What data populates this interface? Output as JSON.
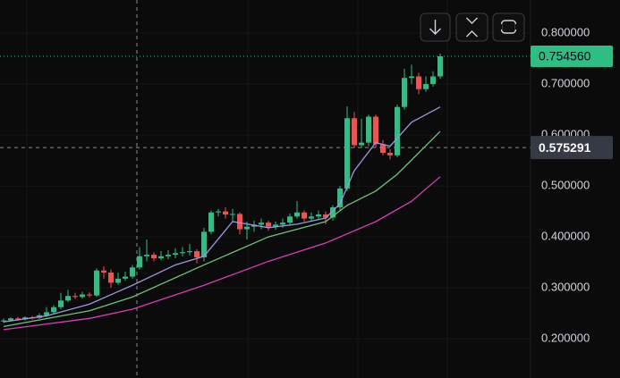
{
  "chart_data": {
    "type": "candlestick",
    "up_color": "#2ebd85",
    "down_color": "#ef5350",
    "open": [
      0.234,
      0.236,
      0.24,
      0.238,
      0.242,
      0.241,
      0.246,
      0.252,
      0.262,
      0.275,
      0.284,
      0.282,
      0.287,
      0.285,
      0.334,
      0.33,
      0.31,
      0.318,
      0.322,
      0.34,
      0.362,
      0.365,
      0.358,
      0.362,
      0.365,
      0.368,
      0.37,
      0.372,
      0.36,
      0.41,
      0.448,
      0.45,
      0.444,
      0.445,
      0.415,
      0.42,
      0.424,
      0.428,
      0.42,
      0.424,
      0.428,
      0.44,
      0.448,
      0.436,
      0.44,
      0.444,
      0.438,
      0.458,
      0.495,
      0.633,
      0.58,
      0.585,
      0.636,
      0.582,
      0.565,
      0.56,
      0.655,
      0.712,
      0.715,
      0.69,
      0.7,
      0.715
    ],
    "high": [
      0.24,
      0.242,
      0.243,
      0.244,
      0.245,
      0.25,
      0.262,
      0.266,
      0.29,
      0.296,
      0.29,
      0.292,
      0.291,
      0.338,
      0.342,
      0.336,
      0.33,
      0.332,
      0.345,
      0.38,
      0.395,
      0.37,
      0.372,
      0.374,
      0.378,
      0.38,
      0.386,
      0.376,
      0.418,
      0.452,
      0.455,
      0.458,
      0.455,
      0.448,
      0.43,
      0.432,
      0.436,
      0.432,
      0.43,
      0.436,
      0.446,
      0.47,
      0.452,
      0.448,
      0.452,
      0.45,
      0.462,
      0.5,
      0.656,
      0.645,
      0.632,
      0.64,
      0.64,
      0.59,
      0.572,
      0.66,
      0.73,
      0.738,
      0.722,
      0.715,
      0.725,
      0.76
    ],
    "low": [
      0.231,
      0.234,
      0.236,
      0.236,
      0.238,
      0.239,
      0.243,
      0.249,
      0.258,
      0.272,
      0.278,
      0.279,
      0.281,
      0.282,
      0.318,
      0.3,
      0.306,
      0.314,
      0.318,
      0.336,
      0.352,
      0.352,
      0.354,
      0.356,
      0.358,
      0.362,
      0.364,
      0.348,
      0.352,
      0.405,
      0.44,
      0.436,
      0.43,
      0.405,
      0.395,
      0.41,
      0.415,
      0.412,
      0.414,
      0.418,
      0.424,
      0.436,
      0.43,
      0.43,
      0.434,
      0.425,
      0.432,
      0.452,
      0.49,
      0.575,
      0.575,
      0.578,
      0.576,
      0.56,
      0.552,
      0.556,
      0.65,
      0.7,
      0.68,
      0.685,
      0.695,
      0.71
    ],
    "close": [
      0.236,
      0.24,
      0.238,
      0.242,
      0.241,
      0.246,
      0.252,
      0.262,
      0.275,
      0.284,
      0.282,
      0.287,
      0.285,
      0.334,
      0.33,
      0.31,
      0.318,
      0.322,
      0.34,
      0.362,
      0.365,
      0.358,
      0.362,
      0.365,
      0.368,
      0.37,
      0.372,
      0.36,
      0.41,
      0.448,
      0.45,
      0.444,
      0.445,
      0.415,
      0.42,
      0.424,
      0.428,
      0.42,
      0.424,
      0.428,
      0.44,
      0.448,
      0.436,
      0.44,
      0.444,
      0.438,
      0.458,
      0.495,
      0.633,
      0.58,
      0.585,
      0.636,
      0.582,
      0.565,
      0.56,
      0.655,
      0.712,
      0.715,
      0.69,
      0.7,
      0.715,
      0.75456
    ],
    "lines": [
      {
        "color": "#9f94e0",
        "x": [
          0,
          6,
          12,
          18,
          24,
          28,
          32,
          37,
          41,
          45,
          47,
          49,
          52,
          54,
          57,
          61
        ],
        "values": [
          0.233,
          0.245,
          0.268,
          0.305,
          0.345,
          0.362,
          0.43,
          0.418,
          0.425,
          0.437,
          0.465,
          0.53,
          0.585,
          0.578,
          0.625,
          0.655
        ]
      },
      {
        "color": "#6fc27a",
        "x": [
          0,
          12,
          18,
          28,
          37,
          45,
          48,
          52,
          55,
          61
        ],
        "values": [
          0.224,
          0.255,
          0.282,
          0.345,
          0.4,
          0.43,
          0.462,
          0.49,
          0.523,
          0.607
        ]
      },
      {
        "color": "#d63fb3",
        "x": [
          0,
          12,
          18,
          28,
          37,
          45,
          52,
          57,
          61
        ],
        "values": [
          0.218,
          0.24,
          0.258,
          0.305,
          0.352,
          0.388,
          0.43,
          0.47,
          0.518
        ]
      }
    ],
    "ylim": [
      0.123,
      0.865
    ],
    "yticks": [
      {
        "value": 0.2,
        "label": "0.200000"
      },
      {
        "value": 0.3,
        "label": "0.300000"
      },
      {
        "value": 0.4,
        "label": "0.400000"
      },
      {
        "value": 0.5,
        "label": "0.500000"
      },
      {
        "value": 0.6,
        "label": "0.600000"
      },
      {
        "value": 0.7,
        "label": "0.700000"
      },
      {
        "value": 0.8,
        "label": "0.800000"
      }
    ],
    "grid": true,
    "last_price": {
      "value": 0.75456,
      "label": "0.754560"
    },
    "crosshair": 0.575291
  }
}
